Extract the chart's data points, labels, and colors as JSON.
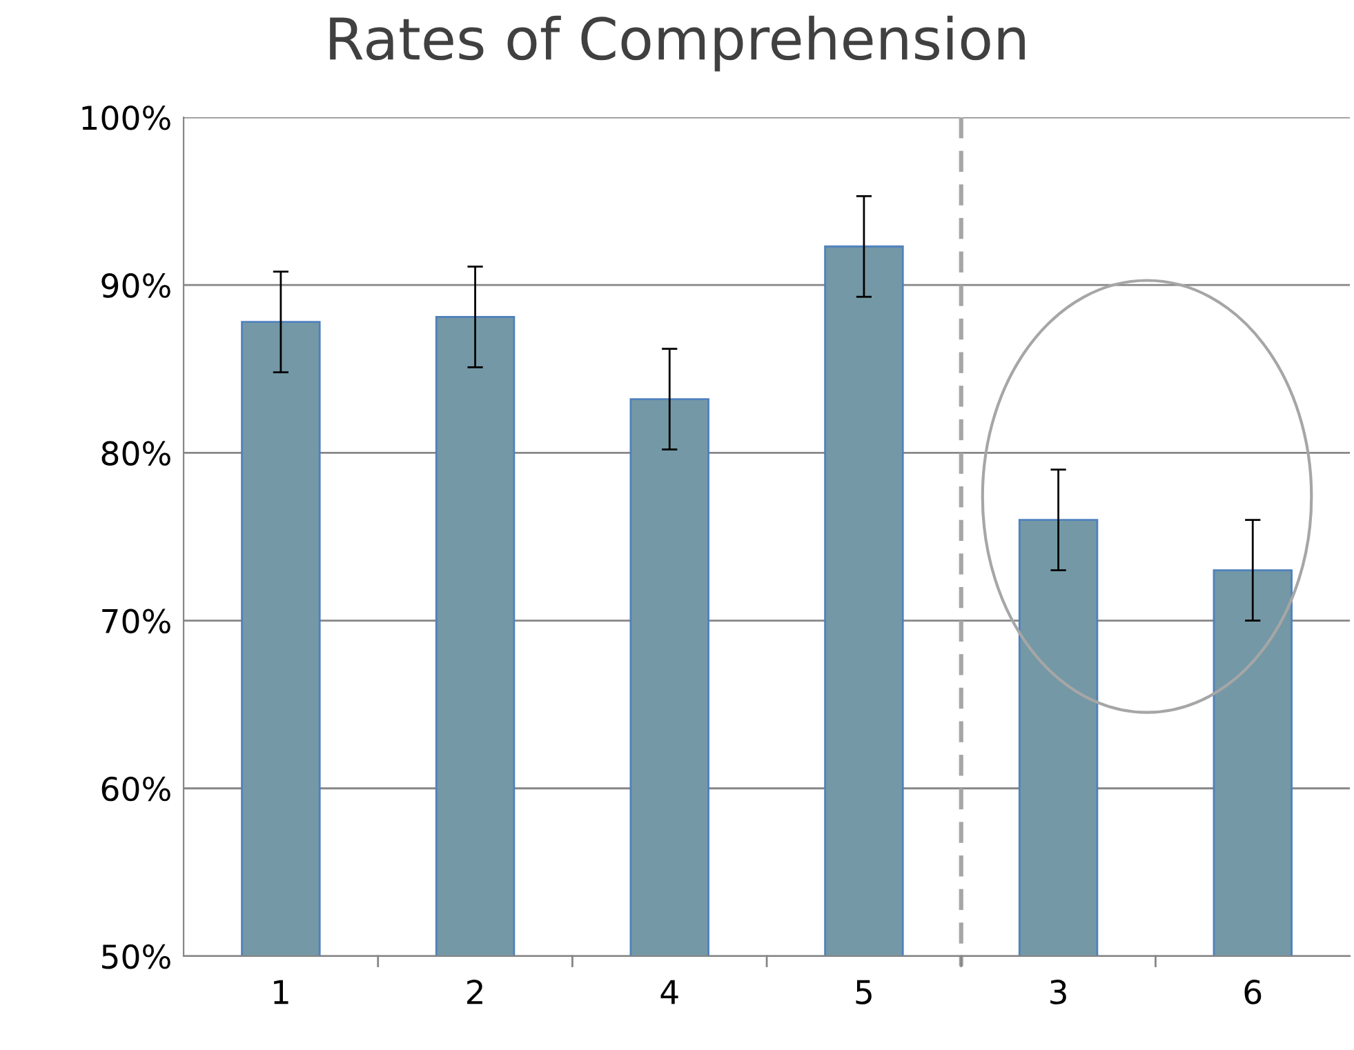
{
  "chart_data": {
    "type": "bar",
    "title": "Rates of Comprehension",
    "categories": [
      "1",
      "2",
      "4",
      "5",
      "3",
      "6"
    ],
    "values": [
      87.8,
      88.1,
      83.2,
      92.3,
      76.0,
      73.0
    ],
    "errors": [
      3,
      3,
      3,
      3,
      3,
      3
    ],
    "color": "#7498a5",
    "ylim": [
      50,
      100
    ],
    "yticks": [
      {
        "value": 50,
        "label": "50%"
      },
      {
        "value": 60,
        "label": "60%"
      },
      {
        "value": 70,
        "label": "70%"
      },
      {
        "value": 80,
        "label": "80%"
      },
      {
        "value": 90,
        "label": "90%"
      },
      {
        "value": 100,
        "label": "100%"
      }
    ],
    "grid": "y"
  }
}
